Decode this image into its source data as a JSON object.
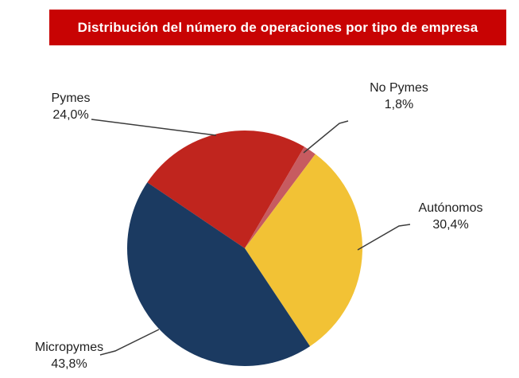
{
  "page": {
    "background_color": "#FFFFFF"
  },
  "header": {
    "title": "Distribución del número de operaciones por tipo de empresa",
    "background_color": "#C80303",
    "text_color": "#FFFFFF"
  },
  "chart_data": {
    "type": "pie",
    "title": "Distribución del número de operaciones por tipo de empresa",
    "legend_position": "none",
    "labels_outside": true,
    "direction": "clockwise",
    "start_angle_deg": -56,
    "label_text_color": "#1F1F1F",
    "leader_line_color": "#3B3B3B",
    "slices": [
      {
        "label": "Pymes",
        "value": 24.0,
        "pct_label": "24,0%",
        "color": "#C0251E"
      },
      {
        "label": "No Pymes",
        "value": 1.8,
        "pct_label": "1,8%",
        "color": "#C75B60"
      },
      {
        "label": "Autónomos",
        "value": 30.4,
        "pct_label": "30,4%",
        "color": "#F2C235"
      },
      {
        "label": "Micropymes",
        "value": 43.8,
        "pct_label": "43,8%",
        "color": "#1B3A61"
      }
    ]
  }
}
